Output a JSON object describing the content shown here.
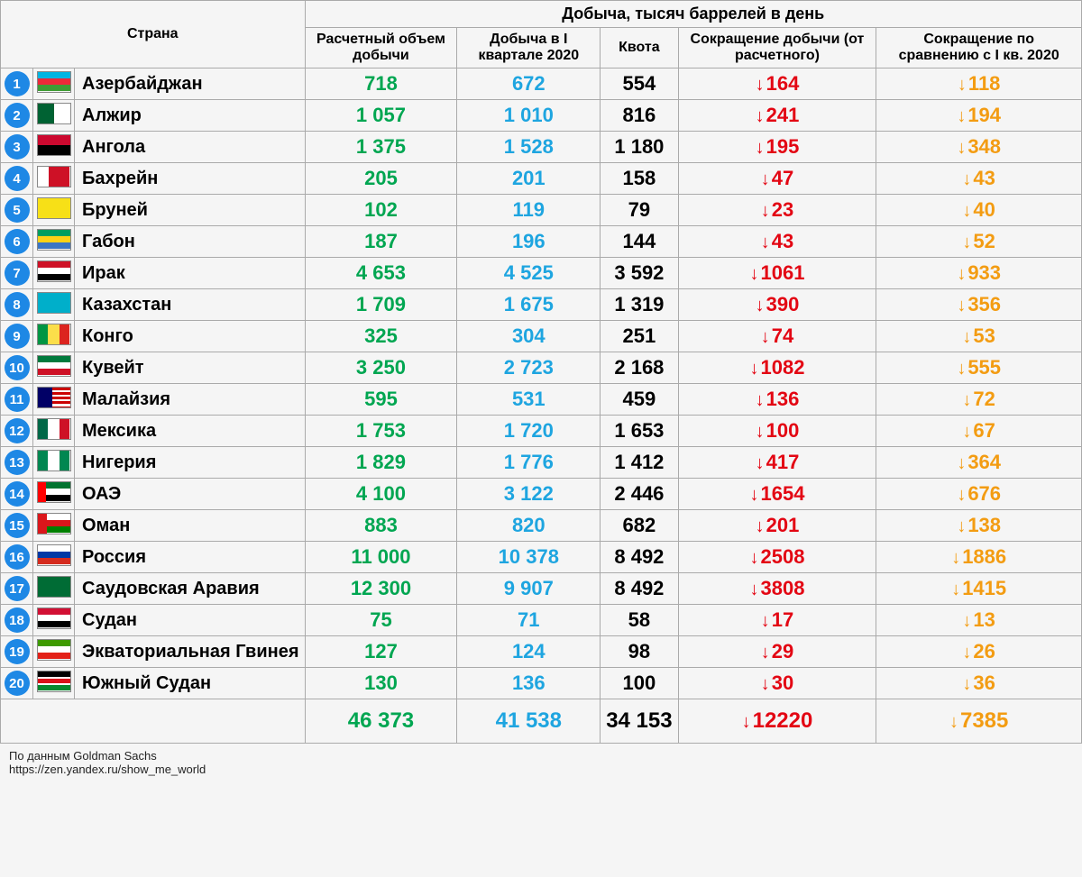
{
  "table": {
    "supertitle": "Добыча, тысяч баррелей в день",
    "headers": {
      "country": "Страна",
      "estimated": "Расчетный объем добычи",
      "q1_2020": "Добыча в I квартале 2020",
      "quota": "Квота",
      "cut_est": "Сокращение добычи (от расчетного)",
      "cut_q1": "Сокращение по сравнению с I кв. 2020"
    },
    "colors": {
      "estimated": "#00a651",
      "q1_2020": "#1ea5e0",
      "quota": "#000000",
      "cut_est": "#e30613",
      "cut_q1": "#f39c12",
      "rank_badge": "#1e88e5",
      "background": "#f5f5f5",
      "border": "#aaaaaa"
    },
    "rows": [
      {
        "n": 1,
        "country": "Азербайджан",
        "est": "718",
        "q1": "672",
        "quota": "554",
        "cut_est": "164",
        "cut_q1": "118",
        "flag": "az"
      },
      {
        "n": 2,
        "country": "Алжир",
        "est": "1 057",
        "q1": "1 010",
        "quota": "816",
        "cut_est": "241",
        "cut_q1": "194",
        "flag": "dz"
      },
      {
        "n": 3,
        "country": "Ангола",
        "est": "1 375",
        "q1": "1 528",
        "quota": "1 180",
        "cut_est": "195",
        "cut_q1": "348",
        "flag": "ao"
      },
      {
        "n": 4,
        "country": "Бахрейн",
        "est": "205",
        "q1": "201",
        "quota": "158",
        "cut_est": "47",
        "cut_q1": "43",
        "flag": "bh"
      },
      {
        "n": 5,
        "country": "Бруней",
        "est": "102",
        "q1": "119",
        "quota": "79",
        "cut_est": "23",
        "cut_q1": "40",
        "flag": "bn"
      },
      {
        "n": 6,
        "country": "Габон",
        "est": "187",
        "q1": "196",
        "quota": "144",
        "cut_est": "43",
        "cut_q1": "52",
        "flag": "ga"
      },
      {
        "n": 7,
        "country": "Ирак",
        "est": "4 653",
        "q1": "4 525",
        "quota": "3 592",
        "cut_est": "1061",
        "cut_q1": "933",
        "flag": "iq"
      },
      {
        "n": 8,
        "country": "Казахстан",
        "est": "1 709",
        "q1": "1 675",
        "quota": "1 319",
        "cut_est": "390",
        "cut_q1": "356",
        "flag": "kz"
      },
      {
        "n": 9,
        "country": "Конго",
        "est": "325",
        "q1": "304",
        "quota": "251",
        "cut_est": "74",
        "cut_q1": "53",
        "flag": "cg"
      },
      {
        "n": 10,
        "country": "Кувейт",
        "est": "3 250",
        "q1": "2 723",
        "quota": "2 168",
        "cut_est": "1082",
        "cut_q1": "555",
        "flag": "kw"
      },
      {
        "n": 11,
        "country": "Малайзия",
        "est": "595",
        "q1": "531",
        "quota": "459",
        "cut_est": "136",
        "cut_q1": "72",
        "flag": "my"
      },
      {
        "n": 12,
        "country": "Мексика",
        "est": "1 753",
        "q1": "1 720",
        "quota": "1 653",
        "cut_est": "100",
        "cut_q1": "67",
        "flag": "mx"
      },
      {
        "n": 13,
        "country": "Нигерия",
        "est": "1 829",
        "q1": "1 776",
        "quota": "1 412",
        "cut_est": "417",
        "cut_q1": "364",
        "flag": "ng"
      },
      {
        "n": 14,
        "country": "ОАЭ",
        "est": "4 100",
        "q1": "3 122",
        "quota": "2 446",
        "cut_est": "1654",
        "cut_q1": "676",
        "flag": "ae"
      },
      {
        "n": 15,
        "country": "Оман",
        "est": "883",
        "q1": "820",
        "quota": "682",
        "cut_est": "201",
        "cut_q1": "138",
        "flag": "om"
      },
      {
        "n": 16,
        "country": "Россия",
        "est": "11 000",
        "q1": "10 378",
        "quota": "8 492",
        "cut_est": "2508",
        "cut_q1": "1886",
        "flag": "ru"
      },
      {
        "n": 17,
        "country": "Саудовская Аравия",
        "est": "12 300",
        "q1": "9 907",
        "quota": "8 492",
        "cut_est": "3808",
        "cut_q1": "1415",
        "flag": "sa"
      },
      {
        "n": 18,
        "country": "Судан",
        "est": "75",
        "q1": "71",
        "quota": "58",
        "cut_est": "17",
        "cut_q1": "13",
        "flag": "sd"
      },
      {
        "n": 19,
        "country": "Экваториальная Гвинея",
        "est": "127",
        "q1": "124",
        "quota": "98",
        "cut_est": "29",
        "cut_q1": "26",
        "flag": "gq"
      },
      {
        "n": 20,
        "country": "Южный Судан",
        "est": "130",
        "q1": "136",
        "quota": "100",
        "cut_est": "30",
        "cut_q1": "36",
        "flag": "ss"
      }
    ],
    "totals": {
      "est": "46 373",
      "q1": "41 538",
      "quota": "34 153",
      "cut_est": "12220",
      "cut_q1": "7385"
    }
  },
  "footer": {
    "line1": "По данным Goldman Sachs",
    "line2": "https://zen.yandex.ru/show_me_world"
  }
}
